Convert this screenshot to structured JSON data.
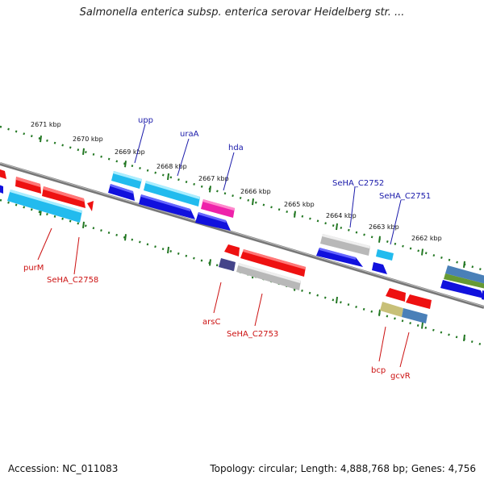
{
  "title": "Salmonella enterica subsp. enterica serovar Heidelberg str. ...",
  "accession": "Accession: NC_011083",
  "topology_text": "Topology: circular; Length: 4,888,768 bp; Genes: 4,756",
  "kbp_ticks": [
    "2671 kbp",
    "2670 kbp",
    "2669 kbp",
    "2668 kbp",
    "2667 kbp",
    "2666 kbp",
    "2665 kbp",
    "2664 kbp",
    "2663 kbp",
    "2662 kbp"
  ],
  "forward_genes": [
    "upp",
    "uraA",
    "hda",
    "SeHA_C2752",
    "SeHA_C2751"
  ],
  "reverse_genes": [
    "purM",
    "SeHA_C2758",
    "arsC",
    "SeHA_C2753",
    "bcp",
    "gcvR"
  ],
  "colors": {
    "forward_label": "#1a1aaa",
    "reverse_label": "#cc1111",
    "backbone": "#777777",
    "ticks": "#227722",
    "red": "#ee1111",
    "blue": "#1111dd",
    "cyan": "#22bbee",
    "magenta": "#ee22aa",
    "grey": "#b8b8b8",
    "navy": "#44448a",
    "olive": "#c8c078",
    "steel": "#4a80b8"
  }
}
